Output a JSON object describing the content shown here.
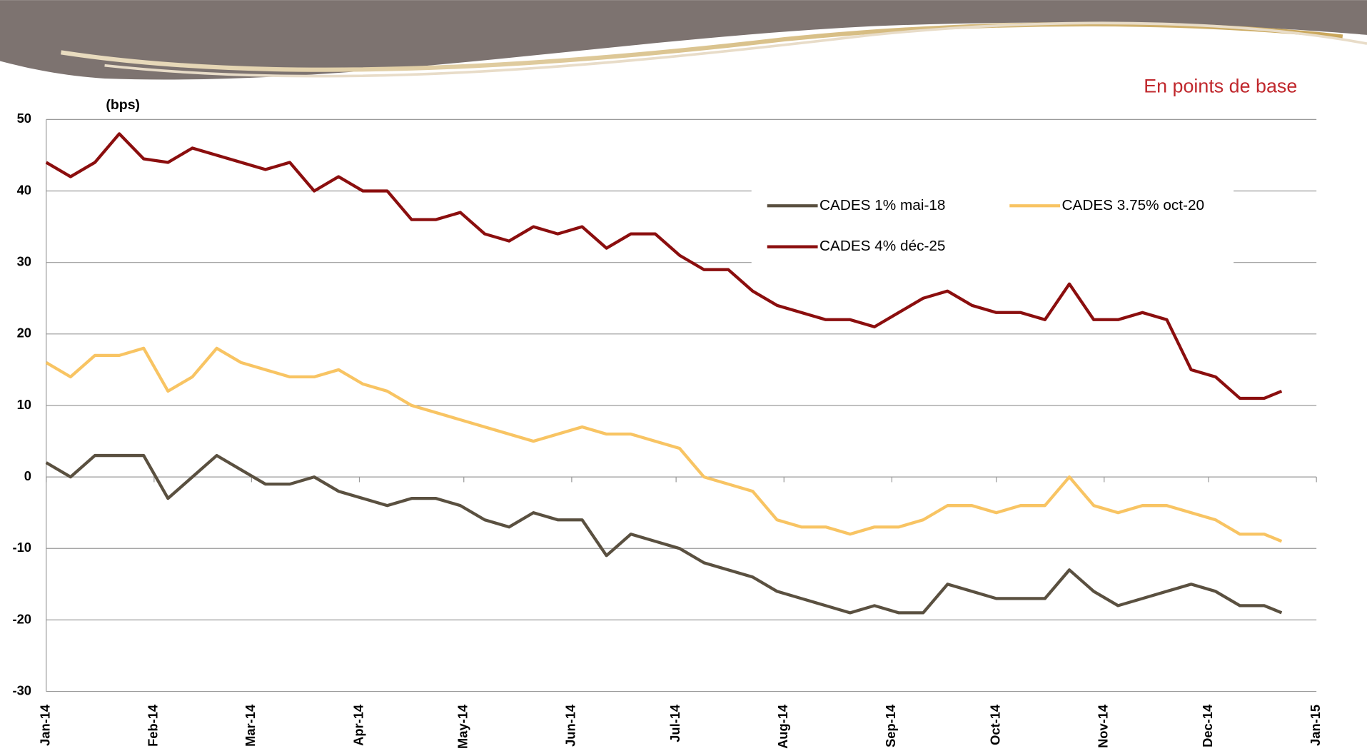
{
  "chart_data": {
    "type": "line",
    "title": "En points de base",
    "y_label": "(bps)",
    "x": [
      0,
      7,
      14,
      21,
      28,
      35,
      42,
      49,
      56,
      63,
      70,
      77,
      84,
      91,
      98,
      105,
      112,
      119,
      126,
      133,
      140,
      147,
      154,
      161,
      168,
      175,
      182,
      189,
      196,
      203,
      210,
      217,
      224,
      231,
      238,
      245,
      252,
      259,
      266,
      273,
      280,
      287,
      294,
      301,
      308,
      315,
      322,
      329,
      336,
      343,
      350,
      355
    ],
    "series": [
      {
        "name": "CADES 1% mai-18",
        "color": "#5a5040",
        "values": [
          2,
          0,
          3,
          3,
          3,
          -3,
          0,
          3,
          1,
          -1,
          -1,
          0,
          -2,
          -3,
          -4,
          -3,
          -3,
          -4,
          -6,
          -7,
          -5,
          -6,
          -6,
          -11,
          -8,
          -9,
          -10,
          -12,
          -13,
          -14,
          -16,
          -17,
          -18,
          -19,
          -18,
          -19,
          -19,
          -15,
          -16,
          -17,
          -17,
          -17,
          -13,
          -16,
          -18,
          -17,
          -16,
          -15,
          -16,
          -18,
          -18,
          -19
        ]
      },
      {
        "name": "CADES 3.75% oct-20",
        "color": "#f8c463",
        "values": [
          16,
          14,
          17,
          17,
          18,
          12,
          14,
          18,
          16,
          15,
          14,
          14,
          15,
          13,
          12,
          10,
          9,
          8,
          7,
          6,
          5,
          6,
          7,
          6,
          6,
          5,
          4,
          0,
          -1,
          -2,
          -6,
          -7,
          -7,
          -8,
          -7,
          -7,
          -6,
          -4,
          -4,
          -5,
          -4,
          -4,
          0,
          -4,
          -5,
          -4,
          -4,
          -5,
          -6,
          -8,
          -8,
          -9
        ]
      },
      {
        "name": "CADES 4% déc-25",
        "color": "#8b0e0e",
        "values": [
          44,
          42,
          44,
          48,
          44.5,
          44,
          46,
          45,
          44,
          43,
          44,
          40,
          42,
          40,
          40,
          36,
          36,
          37,
          34,
          33,
          35,
          34,
          35,
          32,
          34,
          34,
          31,
          29,
          29,
          26,
          24,
          23,
          22,
          22,
          21,
          23,
          25,
          26,
          24,
          23,
          23,
          22,
          27,
          22,
          22,
          23,
          22,
          15,
          14,
          11,
          11,
          12
        ]
      }
    ],
    "xlim": [
      0,
      365
    ],
    "xticks": [
      {
        "value": 0,
        "label": "Jan-14"
      },
      {
        "value": 31,
        "label": "Feb-14"
      },
      {
        "value": 59,
        "label": "Mar-14"
      },
      {
        "value": 90,
        "label": "Apr-14"
      },
      {
        "value": 120,
        "label": "May-14"
      },
      {
        "value": 151,
        "label": "Jun-14"
      },
      {
        "value": 181,
        "label": "Jul-14"
      },
      {
        "value": 212,
        "label": "Aug-14"
      },
      {
        "value": 243,
        "label": "Sep-14"
      },
      {
        "value": 273,
        "label": "Oct-14"
      },
      {
        "value": 304,
        "label": "Nov-14"
      },
      {
        "value": 334,
        "label": "Dec-14"
      },
      {
        "value": 365,
        "label": "Jan-15"
      }
    ],
    "ylim": [
      -30,
      50
    ],
    "yticks": [
      -30,
      -20,
      -10,
      0,
      10,
      20,
      30,
      40,
      50
    ],
    "grid": true
  }
}
